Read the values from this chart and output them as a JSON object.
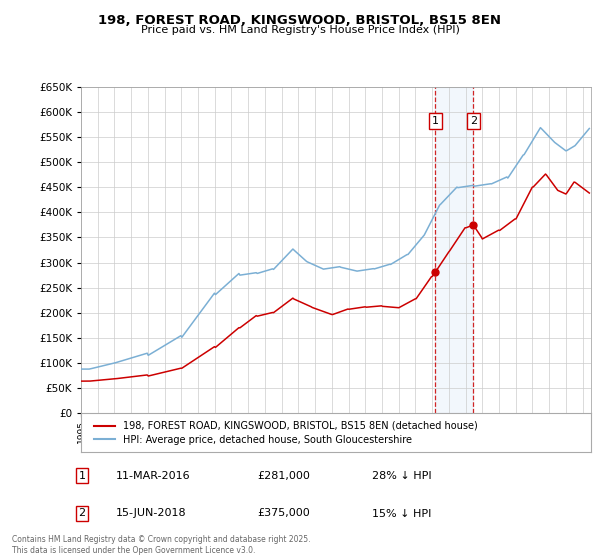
{
  "title": "198, FOREST ROAD, KINGSWOOD, BRISTOL, BS15 8EN",
  "subtitle": "Price paid vs. HM Land Registry's House Price Index (HPI)",
  "background_color": "#ffffff",
  "plot_bg_color": "#ffffff",
  "grid_color": "#cccccc",
  "red_line_color": "#cc0000",
  "blue_line_color": "#7bafd4",
  "sale1_date_num": 2016.19,
  "sale2_date_num": 2018.46,
  "sale1_price": 281000,
  "sale2_price": 375000,
  "sale1_date_str": "11-MAR-2016",
  "sale2_date_str": "15-JUN-2018",
  "sale1_hpi_pct": "28% ↓ HPI",
  "sale2_hpi_pct": "15% ↓ HPI",
  "legend1": "198, FOREST ROAD, KINGSWOOD, BRISTOL, BS15 8EN (detached house)",
  "legend2": "HPI: Average price, detached house, South Gloucestershire",
  "footer": "Contains HM Land Registry data © Crown copyright and database right 2025.\nThis data is licensed under the Open Government Licence v3.0.",
  "ylim_max": 650000,
  "ylim_min": 0,
  "xlim_min": 1995,
  "xlim_max": 2025.5
}
